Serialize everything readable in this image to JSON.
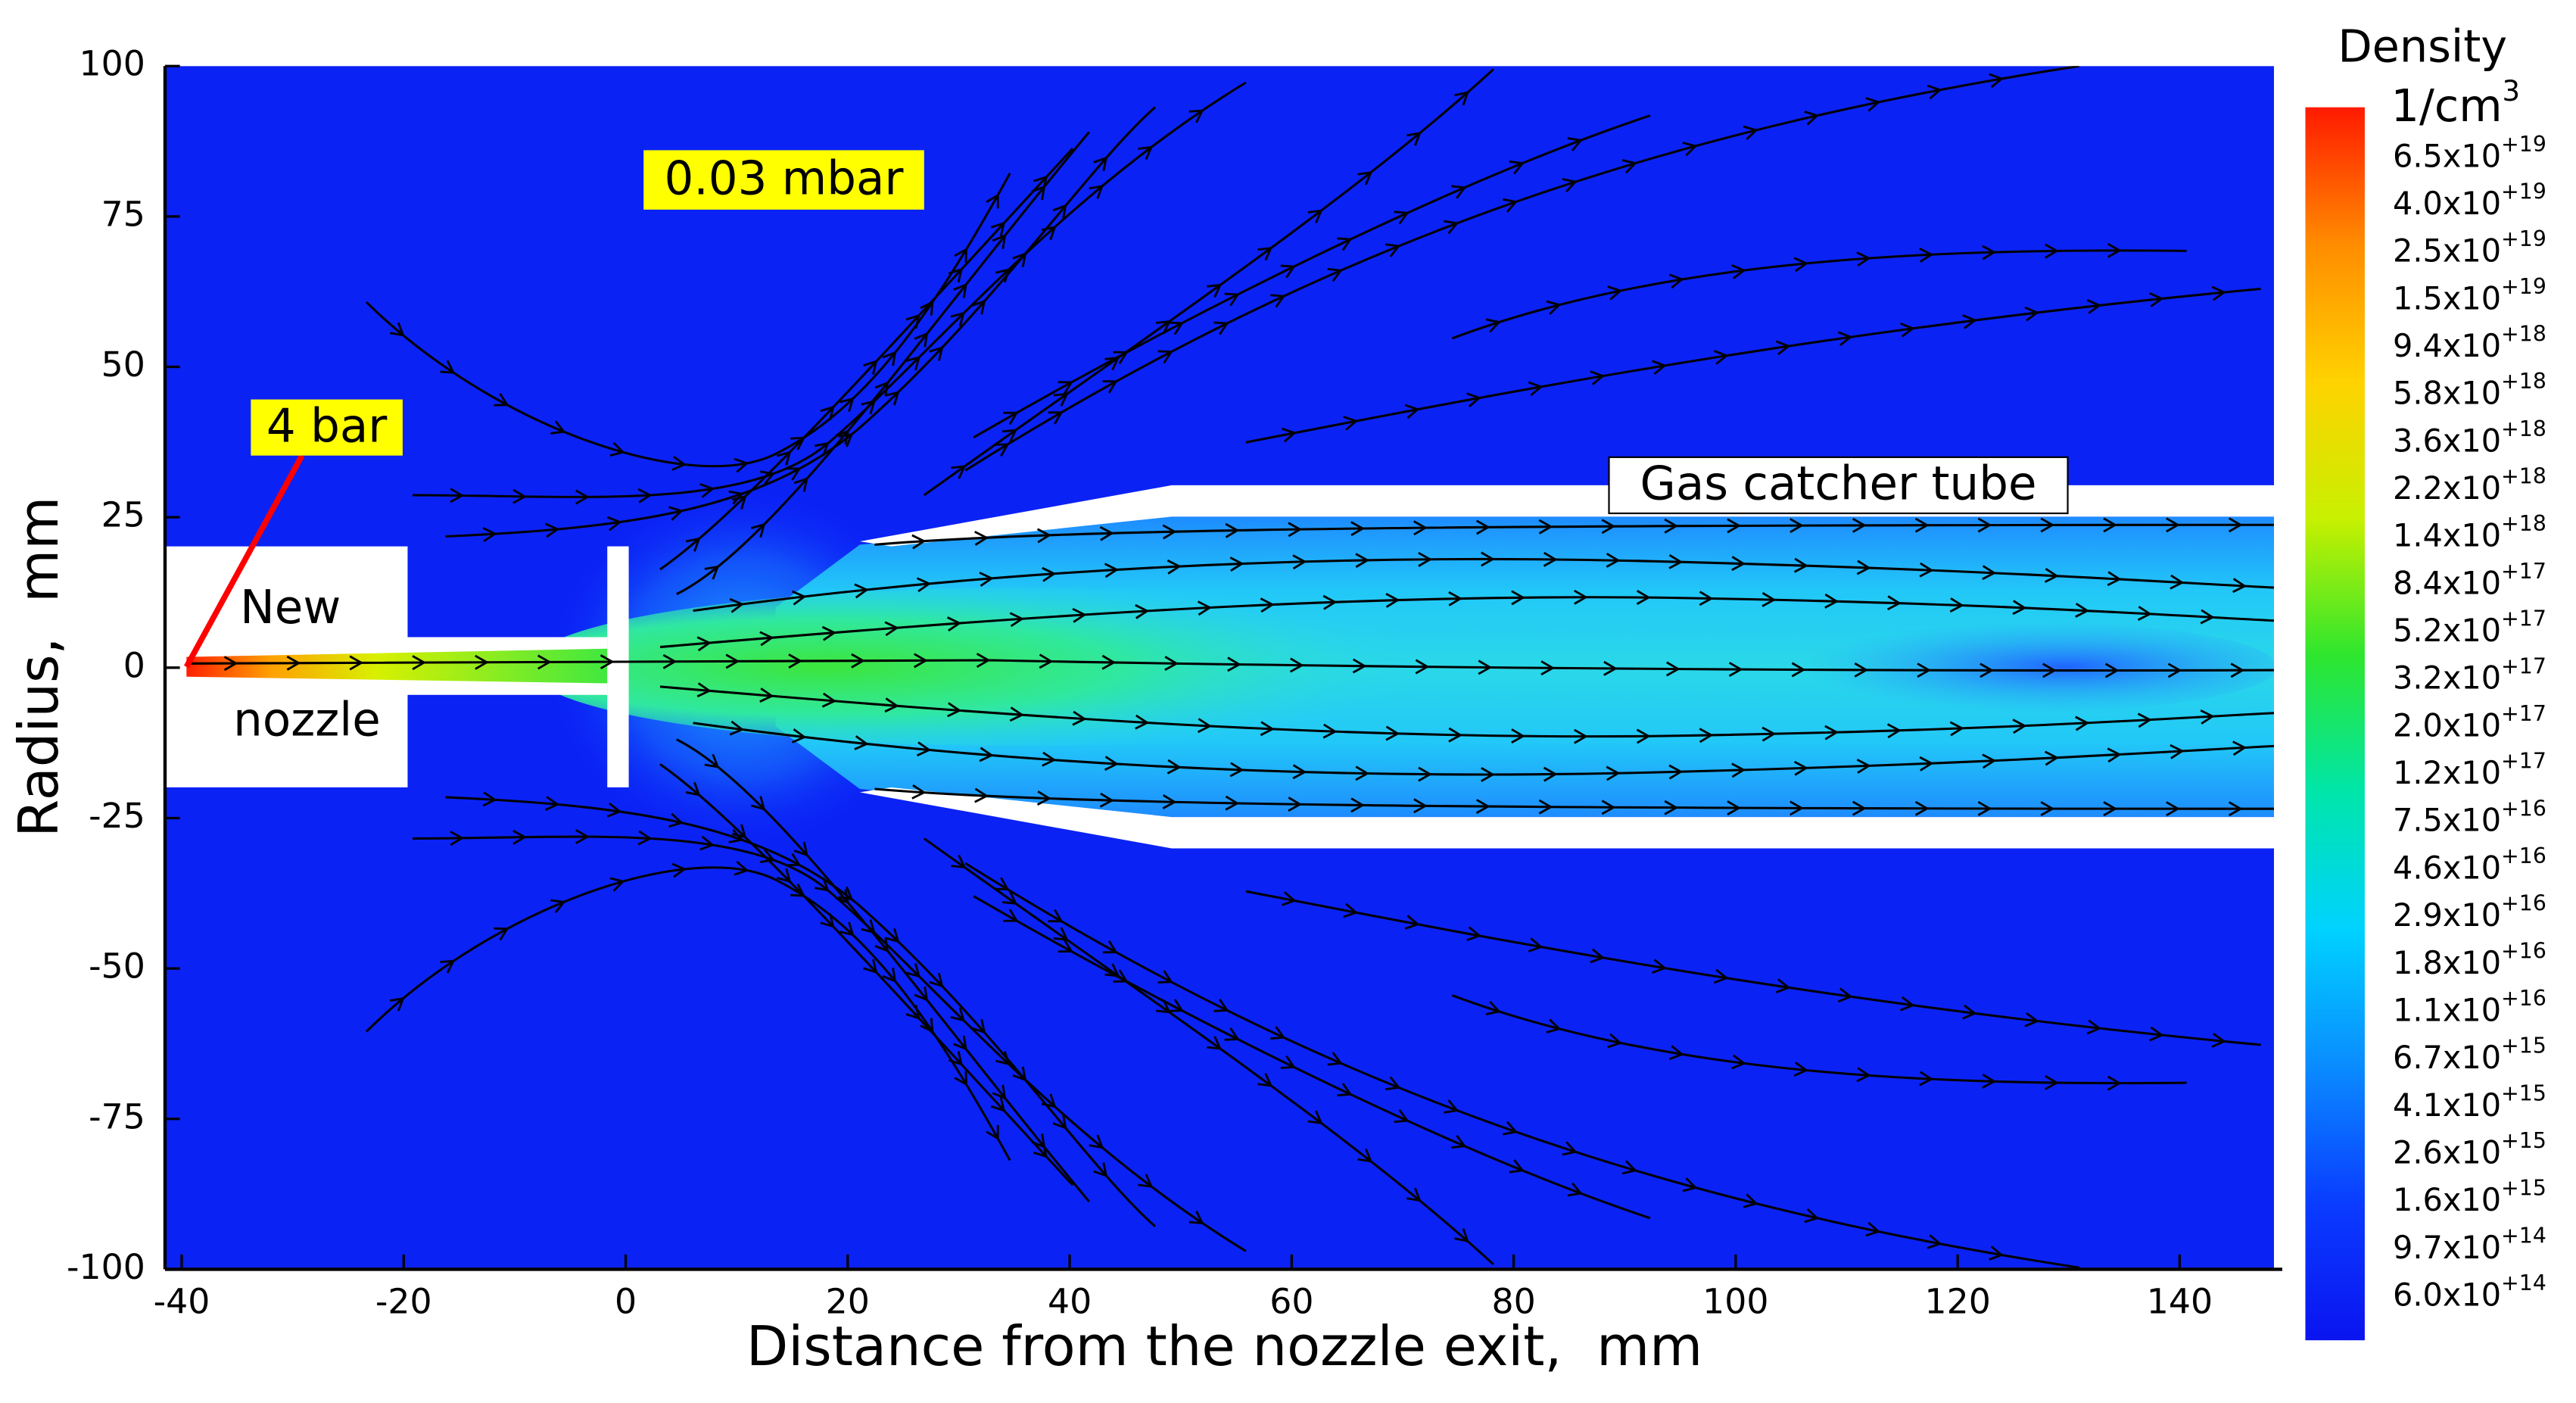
{
  "chart_data": {
    "type": "contour",
    "xlabel": "Distance from the nozzle exit,  mm",
    "ylabel": "Radius,  mm",
    "xlim": [
      -41.5,
      148.5
    ],
    "ylim": [
      -100,
      100
    ],
    "xticks": [
      -40,
      -20,
      0,
      20,
      40,
      60,
      80,
      100,
      120,
      140
    ],
    "yticks": [
      -100,
      -75,
      -50,
      -25,
      0,
      25,
      50,
      75,
      100
    ],
    "annotations": [
      "0.03 mbar",
      "4 bar",
      "New",
      "nozzle",
      "Gas catcher tube"
    ],
    "colorbar": {
      "title": "Density",
      "unit": "1/cm",
      "unit_exponent": "3",
      "colors": [
        "#ff1a00",
        "#ff8c00",
        "#ffd200",
        "#c8f000",
        "#2ee62e",
        "#00e6aa",
        "#00d2ff",
        "#0a8cff",
        "#0a3cff",
        "#0a14f0"
      ],
      "ticks": [
        {
          "value": 6.5e+19,
          "label": "6.5x10",
          "exponent": "+19"
        },
        {
          "value": 4e+19,
          "label": "4.0x10",
          "exponent": "+19"
        },
        {
          "value": 2.5e+19,
          "label": "2.5x10",
          "exponent": "+19"
        },
        {
          "value": 1.5e+19,
          "label": "1.5x10",
          "exponent": "+19"
        },
        {
          "value": 9.4e+18,
          "label": "9.4x10",
          "exponent": "+18"
        },
        {
          "value": 5.8e+18,
          "label": "5.8x10",
          "exponent": "+18"
        },
        {
          "value": 3.6e+18,
          "label": "3.6x10",
          "exponent": "+18"
        },
        {
          "value": 2.2e+18,
          "label": "2.2x10",
          "exponent": "+18"
        },
        {
          "value": 1.4e+18,
          "label": "1.4x10",
          "exponent": "+18"
        },
        {
          "value": 8.4e+17,
          "label": "8.4x10",
          "exponent": "+17"
        },
        {
          "value": 5.2e+17,
          "label": "5.2x10",
          "exponent": "+17"
        },
        {
          "value": 3.2e+17,
          "label": "3.2x10",
          "exponent": "+17"
        },
        {
          "value": 2e+17,
          "label": "2.0x10",
          "exponent": "+17"
        },
        {
          "value": 1.2e+17,
          "label": "1.2x10",
          "exponent": "+17"
        },
        {
          "value": 7.5e+16,
          "label": "7.5x10",
          "exponent": "+16"
        },
        {
          "value": 4.6e+16,
          "label": "4.6x10",
          "exponent": "+16"
        },
        {
          "value": 2.9e+16,
          "label": "2.9x10",
          "exponent": "+16"
        },
        {
          "value": 1.8e+16,
          "label": "1.8x10",
          "exponent": "+16"
        },
        {
          "value": 1.1e+16,
          "label": "1.1x10",
          "exponent": "+16"
        },
        {
          "value": 6700000000000000.0,
          "label": "6.7x10",
          "exponent": "+15"
        },
        {
          "value": 4100000000000000.0,
          "label": "4.1x10",
          "exponent": "+15"
        },
        {
          "value": 2600000000000000.0,
          "label": "2.6x10",
          "exponent": "+15"
        },
        {
          "value": 1600000000000000.0,
          "label": "1.6x10",
          "exponent": "+15"
        },
        {
          "value": 970000000000000.0,
          "label": "9.7x10",
          "exponent": "+14"
        },
        {
          "value": 600000000000000.0,
          "label": "6.0x10",
          "exponent": "+14"
        }
      ]
    }
  }
}
